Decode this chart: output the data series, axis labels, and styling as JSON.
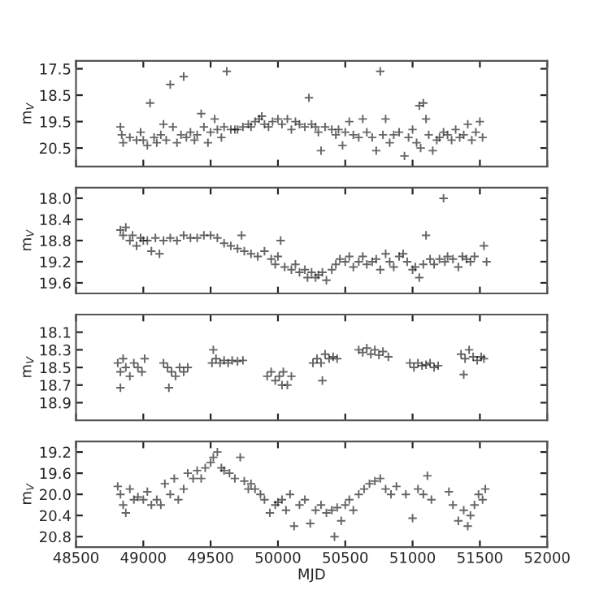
{
  "chart_data": [
    {
      "type": "scatter",
      "ylabel": "m$_{V}$",
      "marker": "cross",
      "color": "#000000",
      "tick_labels": "y",
      "xlim": [
        48500,
        52000
      ],
      "xticks": [
        48500,
        49000,
        49500,
        50000,
        50500,
        51000,
        51500,
        52000
      ],
      "ylim": [
        21.2,
        17.2
      ],
      "yticks": [
        17.5,
        18.5,
        19.5,
        20.5
      ],
      "x": [
        48830,
        48840,
        48850,
        48900,
        48950,
        48980,
        49000,
        49030,
        49050,
        49080,
        49100,
        49130,
        49150,
        49170,
        49200,
        49220,
        49250,
        49280,
        49300,
        49320,
        49350,
        49380,
        49400,
        49430,
        49450,
        49480,
        49500,
        49530,
        49550,
        49580,
        49600,
        49620,
        49650,
        49680,
        49700,
        49740,
        49780,
        49800,
        49830,
        49860,
        49880,
        49900,
        49930,
        49960,
        50000,
        50030,
        50070,
        50100,
        50130,
        50160,
        50200,
        50230,
        50250,
        50280,
        50300,
        50320,
        50350,
        50400,
        50430,
        50450,
        50480,
        50500,
        50530,
        50560,
        50600,
        50630,
        50660,
        50700,
        50730,
        50760,
        50780,
        50800,
        50830,
        50860,
        50900,
        50940,
        50970,
        51000,
        51030,
        51050,
        51060,
        51080,
        51100,
        51120,
        51150,
        51180,
        51200,
        51230,
        51260,
        51290,
        51320,
        51350,
        51380,
        51410,
        51440,
        51470,
        51500,
        51520
      ],
      "values": [
        19.7,
        20.0,
        20.3,
        20.1,
        20.2,
        19.9,
        20.2,
        20.4,
        18.8,
        20.1,
        20.3,
        20.0,
        19.6,
        20.2,
        18.1,
        19.7,
        20.3,
        20.0,
        17.8,
        20.1,
        19.9,
        20.2,
        20.0,
        19.2,
        19.7,
        20.3,
        19.9,
        19.4,
        19.8,
        20.1,
        19.7,
        17.6,
        19.8,
        19.8,
        19.8,
        19.7,
        19.6,
        19.7,
        19.5,
        19.4,
        19.3,
        19.6,
        19.7,
        19.5,
        19.4,
        19.6,
        19.4,
        19.8,
        19.5,
        19.6,
        19.7,
        18.6,
        19.6,
        19.7,
        19.9,
        20.6,
        19.7,
        19.8,
        20.0,
        19.8,
        20.4,
        19.9,
        19.5,
        20.0,
        20.1,
        19.4,
        19.9,
        20.1,
        20.6,
        17.6,
        20.0,
        19.4,
        20.3,
        20.0,
        19.9,
        20.8,
        20.1,
        19.8,
        20.3,
        18.9,
        20.5,
        18.8,
        19.4,
        20.0,
        20.6,
        20.2,
        20.1,
        19.9,
        20.0,
        20.2,
        19.8,
        20.1,
        20.0,
        19.6,
        20.2,
        19.9,
        19.5,
        20.1
      ]
    },
    {
      "type": "scatter",
      "ylabel": "m$_{V}$",
      "marker": "cross",
      "color": "#000000",
      "tick_labels": "y",
      "xlim": [
        48500,
        52000
      ],
      "xticks": [
        48500,
        49000,
        49500,
        50000,
        50500,
        51000,
        51500,
        52000
      ],
      "ylim": [
        19.8,
        17.8
      ],
      "yticks": [
        {
          "value": 18.0,
          "label": "18.0"
        },
        18.4,
        18.8,
        19.2,
        19.6
      ],
      "x": [
        48830,
        48850,
        48870,
        48900,
        48920,
        48950,
        48980,
        49000,
        49030,
        49060,
        49090,
        49120,
        49150,
        49200,
        49250,
        49300,
        49350,
        49400,
        49450,
        49500,
        49550,
        49600,
        49650,
        49700,
        49730,
        49750,
        49800,
        49850,
        49900,
        49950,
        49980,
        50000,
        50020,
        50050,
        50100,
        50130,
        50160,
        50200,
        50220,
        50250,
        50280,
        50300,
        50330,
        50360,
        50400,
        50430,
        50460,
        50500,
        50530,
        50560,
        50600,
        50630,
        50660,
        50700,
        50730,
        50760,
        50800,
        50830,
        50860,
        50900,
        50930,
        50960,
        51000,
        51020,
        51050,
        51080,
        51100,
        51130,
        51160,
        51200,
        51230,
        51240,
        51260,
        51300,
        51340,
        51370,
        51400,
        51430,
        51460,
        51530,
        51550
      ],
      "values": [
        18.6,
        18.7,
        18.55,
        18.8,
        18.7,
        18.9,
        18.75,
        18.8,
        18.8,
        19.0,
        18.75,
        19.05,
        18.8,
        18.75,
        18.8,
        18.7,
        18.75,
        18.75,
        18.7,
        18.7,
        18.75,
        18.85,
        18.9,
        18.95,
        18.7,
        19.0,
        19.05,
        19.1,
        19.0,
        19.15,
        19.25,
        19.1,
        18.8,
        19.3,
        19.35,
        19.25,
        19.4,
        19.35,
        19.5,
        19.4,
        19.5,
        19.45,
        19.4,
        19.55,
        19.35,
        19.25,
        19.15,
        19.2,
        19.1,
        19.3,
        19.2,
        19.1,
        19.25,
        19.2,
        19.15,
        19.35,
        19.05,
        19.2,
        19.3,
        19.1,
        19.05,
        19.2,
        19.35,
        19.3,
        19.5,
        19.25,
        18.7,
        19.15,
        19.25,
        19.15,
        18.0,
        19.2,
        19.1,
        19.15,
        19.3,
        19.1,
        19.15,
        19.2,
        19.1,
        18.9,
        19.2
      ]
    },
    {
      "type": "scatter",
      "ylabel": "m$_{V}$",
      "marker": "cross",
      "color": "#000000",
      "tick_labels": "y",
      "xlim": [
        48500,
        52000
      ],
      "xticks": [
        48500,
        49000,
        49500,
        50000,
        50500,
        51000,
        51500,
        52000
      ],
      "ylim": [
        19.1,
        17.9
      ],
      "yticks": [
        18.1,
        18.3,
        18.5,
        18.7,
        18.9
      ],
      "x": [
        48810,
        48830,
        48850,
        48870,
        48900,
        48930,
        48960,
        48990,
        49010,
        48830,
        49150,
        49180,
        49210,
        49240,
        49270,
        49300,
        49330,
        49190,
        49510,
        49540,
        49570,
        49600,
        49630,
        49660,
        49700,
        49740,
        49520,
        49920,
        49950,
        49980,
        50010,
        50040,
        50070,
        50100,
        50030,
        50260,
        50290,
        50320,
        50350,
        50380,
        50410,
        50440,
        50330,
        50600,
        50630,
        50660,
        50690,
        50720,
        50750,
        50780,
        50820,
        50980,
        51010,
        51040,
        51070,
        51100,
        51130,
        51160,
        51190,
        51360,
        51390,
        51420,
        51450,
        51480,
        51510,
        51530,
        51380
      ],
      "values": [
        18.45,
        18.55,
        18.4,
        18.5,
        18.6,
        18.45,
        18.5,
        18.55,
        18.4,
        18.73,
        18.45,
        18.5,
        18.55,
        18.6,
        18.5,
        18.55,
        18.5,
        18.73,
        18.45,
        18.4,
        18.45,
        18.42,
        18.45,
        18.42,
        18.43,
        18.42,
        18.3,
        18.6,
        18.55,
        18.65,
        18.6,
        18.55,
        18.7,
        18.6,
        18.7,
        18.45,
        18.4,
        18.45,
        18.35,
        18.4,
        18.38,
        18.4,
        18.65,
        18.3,
        18.33,
        18.28,
        18.35,
        18.3,
        18.36,
        18.32,
        18.38,
        18.45,
        18.5,
        18.45,
        18.48,
        18.47,
        18.45,
        18.5,
        18.48,
        18.35,
        18.4,
        18.3,
        18.38,
        18.42,
        18.38,
        18.4,
        18.58
      ]
    },
    {
      "type": "scatter",
      "ylabel": "m$_{V}$",
      "xlabel": "MJD",
      "marker": "cross",
      "color": "#000000",
      "xlim": [
        48500,
        52000
      ],
      "xticks": [
        48500,
        49000,
        49500,
        50000,
        50500,
        51000,
        51500,
        52000
      ],
      "ylim": [
        21.0,
        19.0
      ],
      "yticks": [
        19.2,
        19.6,
        {
          "value": 20.0,
          "label": "20.0"
        },
        20.4,
        20.8
      ],
      "x": [
        48810,
        48830,
        48850,
        48870,
        48900,
        48930,
        48960,
        49000,
        49030,
        49060,
        49100,
        49130,
        49160,
        49200,
        49230,
        49260,
        49300,
        49330,
        49370,
        49400,
        49430,
        49460,
        49500,
        49520,
        49550,
        49580,
        49600,
        49640,
        49680,
        49720,
        49750,
        49780,
        49800,
        49830,
        49870,
        49900,
        49940,
        49980,
        50000,
        50030,
        50060,
        50090,
        50120,
        50160,
        50200,
        50240,
        50280,
        50320,
        50360,
        50400,
        50420,
        50440,
        50470,
        50500,
        50530,
        50560,
        50600,
        50640,
        50680,
        50720,
        50760,
        50800,
        50840,
        50880,
        50950,
        51000,
        51040,
        51080,
        51110,
        51140,
        51270,
        51300,
        51340,
        51380,
        51410,
        51430,
        51460,
        51490,
        51520,
        51540
      ],
      "values": [
        19.85,
        20.0,
        20.2,
        20.35,
        19.9,
        20.1,
        20.05,
        20.1,
        19.95,
        20.2,
        20.1,
        20.2,
        19.8,
        20.0,
        19.7,
        20.1,
        19.9,
        19.6,
        19.7,
        19.55,
        19.7,
        19.5,
        19.4,
        19.3,
        19.2,
        19.5,
        19.55,
        19.6,
        19.7,
        19.3,
        19.75,
        19.9,
        19.8,
        19.9,
        20.0,
        20.1,
        20.35,
        20.2,
        20.15,
        20.1,
        20.3,
        20.0,
        20.6,
        20.2,
        20.1,
        20.55,
        20.3,
        20.2,
        20.35,
        20.3,
        20.8,
        20.25,
        20.5,
        20.2,
        20.1,
        20.3,
        20.0,
        19.9,
        19.8,
        19.75,
        19.7,
        19.9,
        20.0,
        19.85,
        20.0,
        20.45,
        19.9,
        20.0,
        19.65,
        20.1,
        19.95,
        20.2,
        20.5,
        20.3,
        20.6,
        20.4,
        20.2,
        20.0,
        20.1,
        19.9
      ]
    }
  ]
}
